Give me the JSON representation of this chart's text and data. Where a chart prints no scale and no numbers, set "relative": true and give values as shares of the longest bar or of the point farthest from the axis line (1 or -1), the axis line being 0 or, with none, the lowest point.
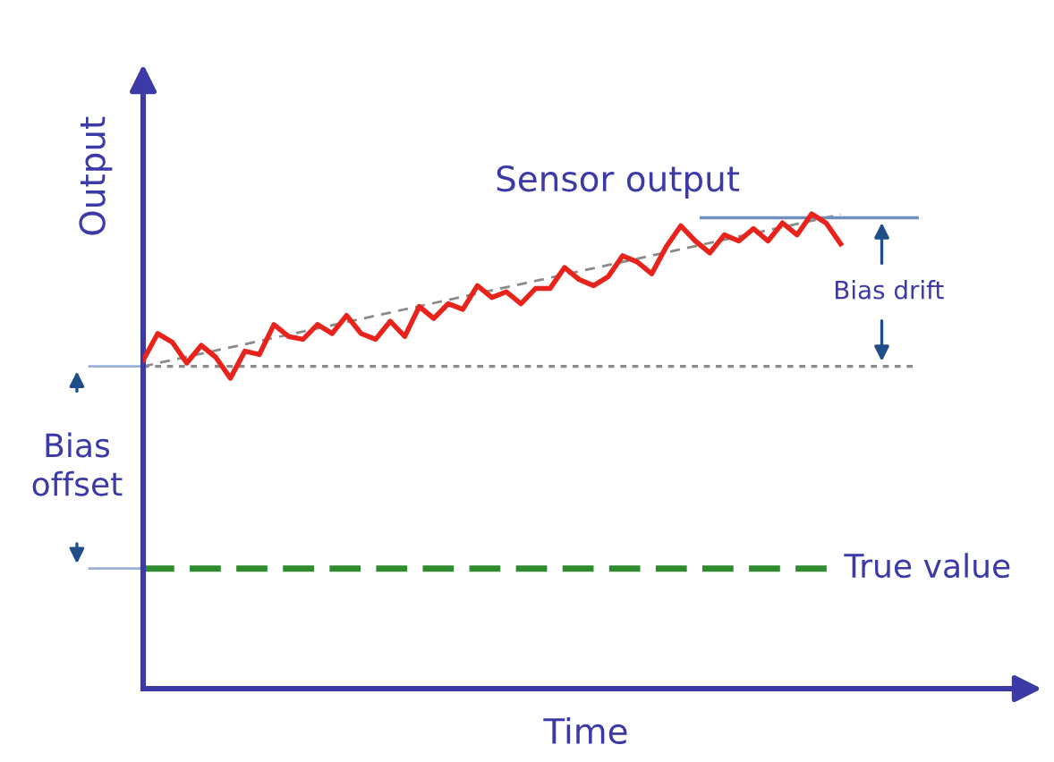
{
  "chart_data": {
    "type": "line",
    "relative": true,
    "xlabel": "Time",
    "ylabel": "Output",
    "annotations": [
      "Sensor output",
      "Bias drift",
      "Bias\noffset"
    ],
    "categories": [
      null,
      null,
      null,
      null,
      null,
      null,
      null,
      null,
      null,
      null,
      null,
      null,
      null,
      null,
      null,
      null,
      null,
      null,
      null,
      null,
      null,
      null,
      null,
      null,
      null,
      null,
      null,
      null,
      null,
      null,
      null,
      null,
      null,
      null,
      null,
      null,
      null,
      null,
      null,
      null,
      null,
      null,
      null,
      null,
      null,
      null,
      null,
      null,
      null
    ],
    "series": [
      {
        "color": "#e8231c",
        "values": [
          0.692,
          0.748,
          0.73,
          0.686,
          0.723,
          0.698,
          0.654,
          0.711,
          0.704,
          0.767,
          0.742,
          0.736,
          0.767,
          0.748,
          0.786,
          0.748,
          0.736,
          0.774,
          0.742,
          0.805,
          0.78,
          0.811,
          0.799,
          0.849,
          0.824,
          0.836,
          0.811,
          0.843,
          0.843,
          0.887,
          0.862,
          0.849,
          0.868,
          0.912,
          0.899,
          0.874,
          0.931,
          0.975,
          0.943,
          0.918,
          0.956,
          0.943,
          0.969,
          0.943,
          0.981,
          0.956,
          1.0,
          0.981,
          0.937
        ]
      },
      {
        "color": "#8a8a8a",
        "line_style": "dashed",
        "values": [
          0.679,
          null,
          null,
          null,
          null,
          null,
          null,
          null,
          null,
          null,
          null,
          null,
          null,
          null,
          null,
          null,
          null,
          null,
          null,
          null,
          null,
          null,
          null,
          null,
          null,
          null,
          null,
          null,
          null,
          null,
          null,
          null,
          null,
          null,
          null,
          null,
          null,
          null,
          null,
          null,
          null,
          null,
          null,
          null,
          null,
          null,
          null,
          null,
          0.999
        ]
      }
    ],
    "ref_lines": [
      {
        "axis": "y",
        "value": 0.679,
        "color": "#8a8a8a",
        "line_style": "dotted"
      },
      {
        "axis": "y",
        "value": 0.992,
        "color": "#6f8fbf",
        "line_style": "solid"
      },
      {
        "axis": "y",
        "value": 0.253,
        "label": "True value",
        "color": "#2e8b2e",
        "line_style": "dashed"
      }
    ]
  }
}
